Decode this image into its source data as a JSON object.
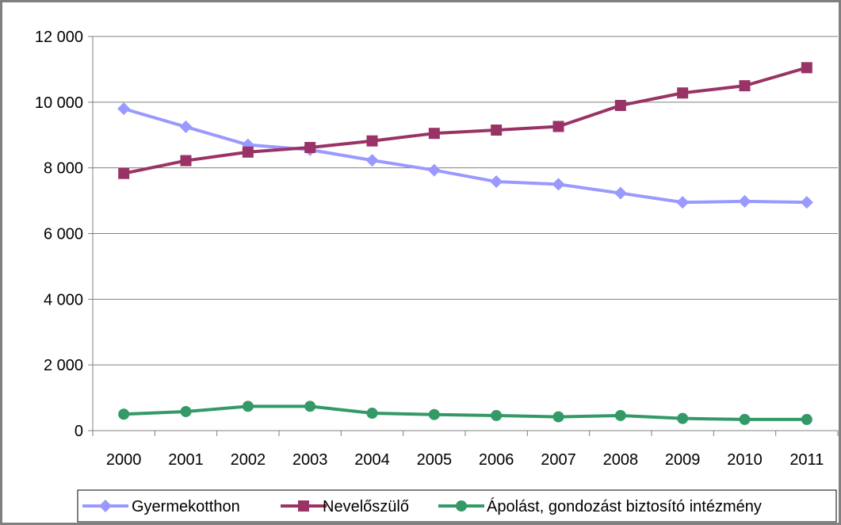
{
  "chart_data": {
    "type": "line",
    "title": "",
    "xlabel": "",
    "ylabel": "",
    "categories": [
      "2000",
      "2001",
      "2002",
      "2003",
      "2004",
      "2005",
      "2006",
      "2007",
      "2008",
      "2009",
      "2010",
      "2011"
    ],
    "ylim": [
      0,
      12000
    ],
    "yticks": [
      0,
      2000,
      4000,
      6000,
      8000,
      10000,
      12000
    ],
    "ytick_labels": [
      "0",
      "2 000",
      "4 000",
      "6 000",
      "8 000",
      "10 000",
      "12 000"
    ],
    "grid": true,
    "legend_position": "bottom",
    "series": [
      {
        "name": "Gyermekotthon",
        "marker": "diamond",
        "color": "#9999ff",
        "values": [
          9800,
          9250,
          8700,
          8550,
          8230,
          7930,
          7580,
          7500,
          7230,
          6950,
          6980,
          6950
        ]
      },
      {
        "name": "Nevelőszülő",
        "marker": "square",
        "color": "#993366",
        "values": [
          7830,
          8220,
          8480,
          8620,
          8820,
          9050,
          9150,
          9260,
          9900,
          10280,
          10500,
          11050
        ]
      },
      {
        "name": "Ápolást, gondozást biztosító intézmény",
        "marker": "circle",
        "color": "#339966",
        "values": [
          500,
          580,
          740,
          740,
          530,
          490,
          460,
          420,
          460,
          370,
          340,
          340
        ]
      }
    ]
  }
}
